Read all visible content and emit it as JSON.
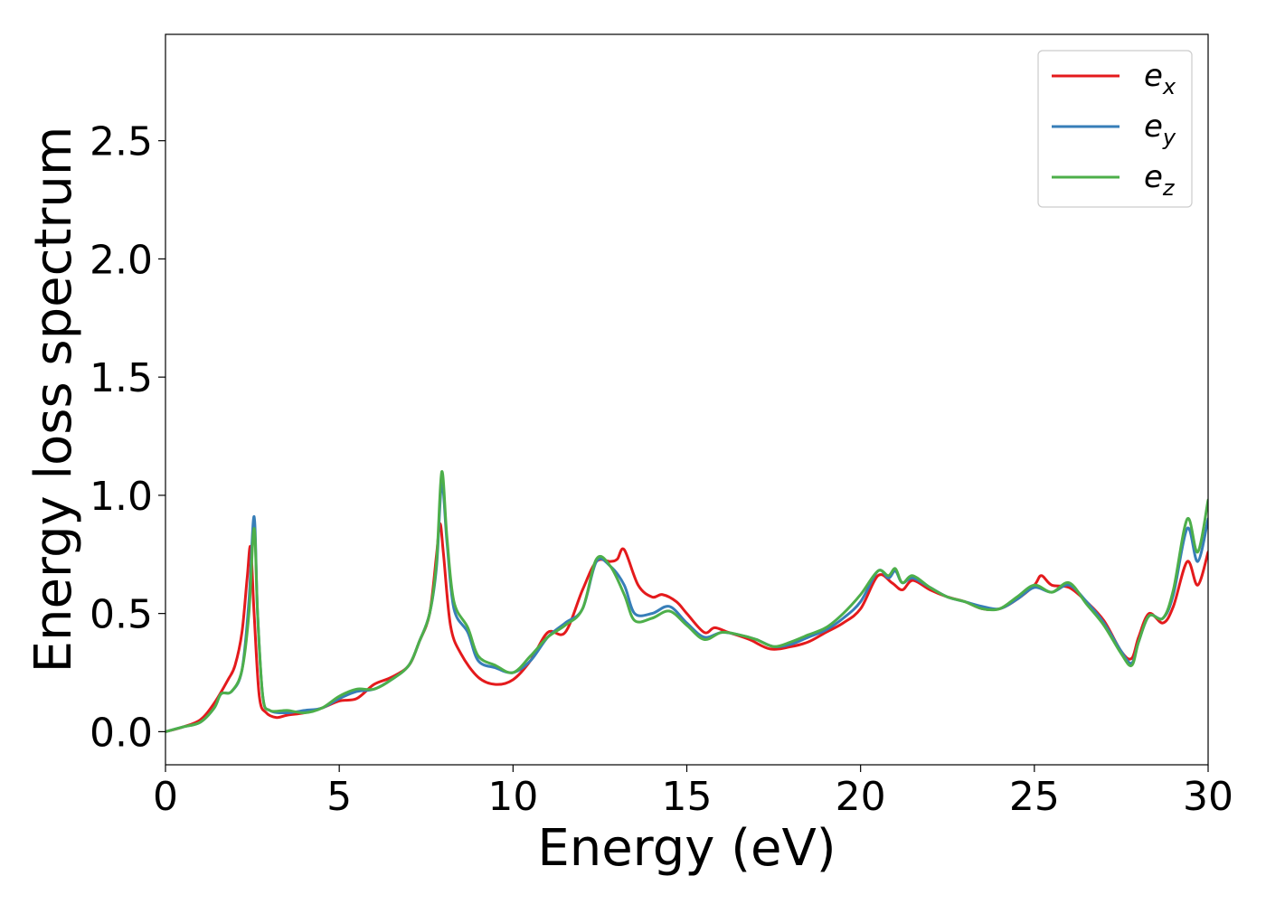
{
  "chart_data": {
    "type": "line",
    "title": "",
    "xlabel": "Energy (eV)",
    "ylabel": "Energy loss spectrum",
    "xlim": [
      0,
      30
    ],
    "ylim": [
      -0.14,
      2.95
    ],
    "x_ticks": [
      0,
      5,
      10,
      15,
      20,
      25,
      30
    ],
    "x_tick_labels": [
      "0",
      "5",
      "10",
      "15",
      "20",
      "25",
      "30"
    ],
    "y_ticks": [
      0.0,
      0.5,
      1.0,
      1.5,
      2.0,
      2.5
    ],
    "y_tick_labels": [
      "0.0",
      "0.5",
      "1.0",
      "1.5",
      "2.0",
      "2.5"
    ],
    "grid": false,
    "legend_position": "top-right",
    "series": [
      {
        "name": "e_x",
        "label_main": "e",
        "label_sub": "x",
        "color": "#e41a1c",
        "points": [
          [
            0,
            0
          ],
          [
            0.5,
            0.02
          ],
          [
            1.0,
            0.05
          ],
          [
            1.4,
            0.12
          ],
          [
            1.8,
            0.22
          ],
          [
            2.0,
            0.28
          ],
          [
            2.2,
            0.42
          ],
          [
            2.35,
            0.65
          ],
          [
            2.45,
            0.78
          ],
          [
            2.55,
            0.5
          ],
          [
            2.7,
            0.15
          ],
          [
            2.9,
            0.08
          ],
          [
            3.2,
            0.06
          ],
          [
            3.5,
            0.07
          ],
          [
            4.0,
            0.08
          ],
          [
            4.5,
            0.1
          ],
          [
            5.0,
            0.13
          ],
          [
            5.5,
            0.14
          ],
          [
            6.0,
            0.2
          ],
          [
            6.5,
            0.23
          ],
          [
            7.0,
            0.28
          ],
          [
            7.3,
            0.38
          ],
          [
            7.6,
            0.5
          ],
          [
            7.8,
            0.75
          ],
          [
            7.9,
            0.88
          ],
          [
            8.0,
            0.75
          ],
          [
            8.2,
            0.45
          ],
          [
            8.5,
            0.33
          ],
          [
            9.0,
            0.23
          ],
          [
            9.5,
            0.2
          ],
          [
            10.0,
            0.22
          ],
          [
            10.5,
            0.3
          ],
          [
            11.0,
            0.42
          ],
          [
            11.5,
            0.42
          ],
          [
            12.0,
            0.6
          ],
          [
            12.4,
            0.72
          ],
          [
            12.8,
            0.72
          ],
          [
            13.0,
            0.73
          ],
          [
            13.2,
            0.77
          ],
          [
            13.6,
            0.62
          ],
          [
            14.0,
            0.57
          ],
          [
            14.3,
            0.58
          ],
          [
            14.7,
            0.55
          ],
          [
            15.0,
            0.5
          ],
          [
            15.5,
            0.42
          ],
          [
            15.8,
            0.44
          ],
          [
            16.2,
            0.42
          ],
          [
            16.8,
            0.39
          ],
          [
            17.4,
            0.35
          ],
          [
            18.0,
            0.36
          ],
          [
            18.5,
            0.38
          ],
          [
            19.0,
            0.42
          ],
          [
            19.5,
            0.46
          ],
          [
            20.0,
            0.52
          ],
          [
            20.5,
            0.66
          ],
          [
            20.9,
            0.63
          ],
          [
            21.2,
            0.6
          ],
          [
            21.5,
            0.64
          ],
          [
            22.0,
            0.6
          ],
          [
            22.5,
            0.57
          ],
          [
            23.0,
            0.55
          ],
          [
            23.5,
            0.52
          ],
          [
            24.0,
            0.52
          ],
          [
            24.5,
            0.56
          ],
          [
            25.0,
            0.62
          ],
          [
            25.2,
            0.66
          ],
          [
            25.5,
            0.62
          ],
          [
            26.0,
            0.61
          ],
          [
            26.5,
            0.55
          ],
          [
            27.0,
            0.47
          ],
          [
            27.5,
            0.34
          ],
          [
            27.8,
            0.31
          ],
          [
            28.0,
            0.4
          ],
          [
            28.3,
            0.5
          ],
          [
            28.7,
            0.46
          ],
          [
            29.0,
            0.53
          ],
          [
            29.4,
            0.72
          ],
          [
            29.7,
            0.62
          ],
          [
            30.0,
            0.76
          ]
        ]
      },
      {
        "name": "e_y",
        "label_main": "e",
        "label_sub": "y",
        "color": "#377eb8",
        "points": [
          [
            0,
            0
          ],
          [
            0.5,
            0.02
          ],
          [
            1.0,
            0.04
          ],
          [
            1.4,
            0.1
          ],
          [
            1.6,
            0.16
          ],
          [
            1.9,
            0.17
          ],
          [
            2.2,
            0.26
          ],
          [
            2.4,
            0.55
          ],
          [
            2.55,
            0.91
          ],
          [
            2.65,
            0.5
          ],
          [
            2.8,
            0.15
          ],
          [
            3.0,
            0.09
          ],
          [
            3.5,
            0.08
          ],
          [
            4.0,
            0.09
          ],
          [
            4.5,
            0.1
          ],
          [
            5.0,
            0.14
          ],
          [
            5.5,
            0.17
          ],
          [
            6.0,
            0.18
          ],
          [
            6.5,
            0.22
          ],
          [
            7.0,
            0.28
          ],
          [
            7.3,
            0.38
          ],
          [
            7.6,
            0.5
          ],
          [
            7.8,
            0.7
          ],
          [
            7.95,
            1.05
          ],
          [
            8.1,
            0.8
          ],
          [
            8.3,
            0.52
          ],
          [
            8.7,
            0.42
          ],
          [
            9.0,
            0.3
          ],
          [
            9.5,
            0.27
          ],
          [
            10.0,
            0.25
          ],
          [
            10.5,
            0.3
          ],
          [
            11.0,
            0.4
          ],
          [
            11.5,
            0.46
          ],
          [
            12.0,
            0.52
          ],
          [
            12.4,
            0.72
          ],
          [
            12.8,
            0.7
          ],
          [
            13.2,
            0.62
          ],
          [
            13.5,
            0.5
          ],
          [
            14.0,
            0.5
          ],
          [
            14.5,
            0.53
          ],
          [
            15.0,
            0.46
          ],
          [
            15.5,
            0.4
          ],
          [
            16.0,
            0.42
          ],
          [
            16.5,
            0.41
          ],
          [
            17.0,
            0.39
          ],
          [
            17.5,
            0.36
          ],
          [
            18.0,
            0.37
          ],
          [
            18.5,
            0.4
          ],
          [
            19.0,
            0.43
          ],
          [
            19.5,
            0.48
          ],
          [
            20.0,
            0.55
          ],
          [
            20.5,
            0.68
          ],
          [
            20.8,
            0.65
          ],
          [
            21.0,
            0.68
          ],
          [
            21.2,
            0.63
          ],
          [
            21.5,
            0.65
          ],
          [
            22.0,
            0.61
          ],
          [
            22.5,
            0.57
          ],
          [
            23.0,
            0.55
          ],
          [
            23.5,
            0.53
          ],
          [
            24.0,
            0.52
          ],
          [
            24.5,
            0.56
          ],
          [
            25.0,
            0.61
          ],
          [
            25.5,
            0.59
          ],
          [
            26.0,
            0.62
          ],
          [
            26.5,
            0.55
          ],
          [
            27.0,
            0.46
          ],
          [
            27.5,
            0.34
          ],
          [
            27.8,
            0.29
          ],
          [
            28.0,
            0.38
          ],
          [
            28.3,
            0.49
          ],
          [
            28.7,
            0.48
          ],
          [
            29.0,
            0.58
          ],
          [
            29.4,
            0.86
          ],
          [
            29.7,
            0.72
          ],
          [
            30.0,
            0.9
          ]
        ]
      },
      {
        "name": "e_z",
        "label_main": "e",
        "label_sub": "z",
        "color": "#4daf4a",
        "points": [
          [
            0,
            0
          ],
          [
            0.5,
            0.02
          ],
          [
            1.0,
            0.04
          ],
          [
            1.4,
            0.1
          ],
          [
            1.6,
            0.16
          ],
          [
            1.9,
            0.17
          ],
          [
            2.2,
            0.26
          ],
          [
            2.4,
            0.5
          ],
          [
            2.55,
            0.86
          ],
          [
            2.65,
            0.5
          ],
          [
            2.8,
            0.15
          ],
          [
            3.0,
            0.09
          ],
          [
            3.5,
            0.09
          ],
          [
            4.0,
            0.08
          ],
          [
            4.5,
            0.1
          ],
          [
            5.0,
            0.15
          ],
          [
            5.5,
            0.18
          ],
          [
            6.0,
            0.18
          ],
          [
            6.5,
            0.22
          ],
          [
            7.0,
            0.28
          ],
          [
            7.3,
            0.38
          ],
          [
            7.6,
            0.5
          ],
          [
            7.8,
            0.72
          ],
          [
            7.95,
            1.1
          ],
          [
            8.1,
            0.82
          ],
          [
            8.3,
            0.55
          ],
          [
            8.7,
            0.44
          ],
          [
            9.0,
            0.32
          ],
          [
            9.5,
            0.28
          ],
          [
            10.0,
            0.25
          ],
          [
            10.5,
            0.32
          ],
          [
            11.0,
            0.4
          ],
          [
            11.5,
            0.45
          ],
          [
            12.0,
            0.52
          ],
          [
            12.4,
            0.73
          ],
          [
            12.8,
            0.7
          ],
          [
            13.2,
            0.58
          ],
          [
            13.5,
            0.47
          ],
          [
            14.0,
            0.48
          ],
          [
            14.5,
            0.51
          ],
          [
            15.0,
            0.45
          ],
          [
            15.5,
            0.39
          ],
          [
            16.0,
            0.42
          ],
          [
            16.5,
            0.41
          ],
          [
            17.0,
            0.39
          ],
          [
            17.5,
            0.36
          ],
          [
            18.0,
            0.38
          ],
          [
            18.5,
            0.41
          ],
          [
            19.0,
            0.44
          ],
          [
            19.5,
            0.5
          ],
          [
            20.0,
            0.58
          ],
          [
            20.5,
            0.68
          ],
          [
            20.8,
            0.66
          ],
          [
            21.0,
            0.69
          ],
          [
            21.2,
            0.63
          ],
          [
            21.5,
            0.66
          ],
          [
            22.0,
            0.61
          ],
          [
            22.5,
            0.57
          ],
          [
            23.0,
            0.55
          ],
          [
            23.5,
            0.52
          ],
          [
            24.0,
            0.52
          ],
          [
            24.5,
            0.57
          ],
          [
            25.0,
            0.62
          ],
          [
            25.5,
            0.59
          ],
          [
            26.0,
            0.63
          ],
          [
            26.5,
            0.54
          ],
          [
            27.0,
            0.45
          ],
          [
            27.5,
            0.33
          ],
          [
            27.8,
            0.28
          ],
          [
            28.0,
            0.38
          ],
          [
            28.3,
            0.49
          ],
          [
            28.7,
            0.48
          ],
          [
            29.0,
            0.6
          ],
          [
            29.4,
            0.9
          ],
          [
            29.7,
            0.76
          ],
          [
            30.0,
            0.98
          ]
        ]
      }
    ]
  }
}
